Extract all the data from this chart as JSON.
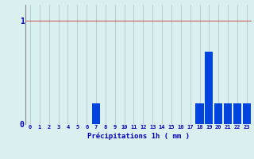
{
  "hours": [
    0,
    1,
    2,
    3,
    4,
    5,
    6,
    7,
    8,
    9,
    10,
    11,
    12,
    13,
    14,
    15,
    16,
    17,
    18,
    19,
    20,
    21,
    22,
    23
  ],
  "values": [
    0,
    0,
    0,
    0,
    0,
    0,
    0,
    0.2,
    0,
    0,
    0,
    0,
    0,
    0,
    0,
    0,
    0,
    0,
    0.2,
    0.7,
    0.2,
    0.2,
    0.2,
    0.2
  ],
  "bar_color": "#0044dd",
  "background_color": "#daf0f0",
  "grid_color_x": "#aacccc",
  "grid_color_y": "#cc3333",
  "xlabel": "Précipitations 1h ( mm )",
  "xlabel_color": "#0000bb",
  "tick_color": "#0000bb",
  "axis_color": "#888888",
  "ylim": [
    0,
    1.15
  ],
  "xlim": [
    -0.5,
    23.5
  ],
  "yticks": [
    0,
    1
  ],
  "ytick_labels": [
    "0",
    "1"
  ]
}
